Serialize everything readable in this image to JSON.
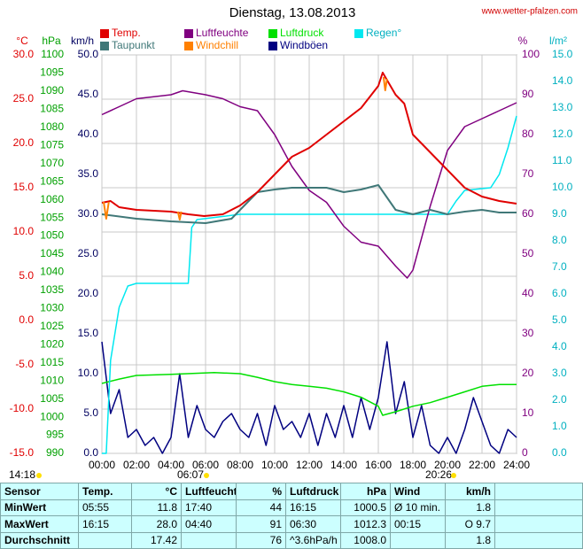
{
  "chart_data": {
    "type": "line",
    "title": "Dienstag, 13.08.2013",
    "source": "www.wetter-pfalzen.com",
    "xlim": [
      0,
      24
    ],
    "xticks": [
      {
        "value": 0,
        "label": "00:00"
      },
      {
        "value": 2,
        "label": "02:00"
      },
      {
        "value": 4,
        "label": "04:00"
      },
      {
        "value": 6,
        "label": "06:00"
      },
      {
        "value": 8,
        "label": "08:00"
      },
      {
        "value": 10,
        "label": "10:00"
      },
      {
        "value": 12,
        "label": "12:00"
      },
      {
        "value": 14,
        "label": "14:00"
      },
      {
        "value": 16,
        "label": "16:00"
      },
      {
        "value": 18,
        "label": "18:00"
      },
      {
        "value": 20,
        "label": "20:00"
      },
      {
        "value": 22,
        "label": "22:00"
      },
      {
        "value": 24,
        "label": "24:00"
      }
    ],
    "ylabel": "°C",
    "ylim": [
      -15,
      30
    ],
    "yticks": [
      {
        "value": 30,
        "label": "30.0"
      },
      {
        "value": 25,
        "label": "25.0"
      },
      {
        "value": 20,
        "label": "20.0"
      },
      {
        "value": 15,
        "label": "15.0"
      },
      {
        "value": 10,
        "label": "10.0"
      },
      {
        "value": 5,
        "label": "5.0"
      },
      {
        "value": 0,
        "label": "0.0"
      },
      {
        "value": -5,
        "label": "-5.0"
      },
      {
        "value": -10,
        "label": "-10.0"
      },
      {
        "value": -15,
        "label": "-15.0"
      }
    ],
    "y2label": "hPa",
    "y2lim": [
      990,
      1100
    ],
    "y2ticks": [
      1100,
      1095,
      1090,
      1085,
      1080,
      1075,
      1070,
      1065,
      1060,
      1055,
      1050,
      1045,
      1040,
      1035,
      1030,
      1025,
      1020,
      1015,
      1010,
      1005,
      1000,
      995,
      990
    ],
    "y3label": "km/h",
    "y3lim": [
      0,
      50
    ],
    "y3ticks": [
      {
        "value": 50,
        "label": "50.0"
      },
      {
        "value": 45,
        "label": "45.0"
      },
      {
        "value": 40,
        "label": "40.0"
      },
      {
        "value": 35,
        "label": "35.0"
      },
      {
        "value": 30,
        "label": "30.0"
      },
      {
        "value": 25,
        "label": "25.0"
      },
      {
        "value": 20,
        "label": "20.0"
      },
      {
        "value": 15,
        "label": "15.0"
      },
      {
        "value": 10,
        "label": "10.0"
      },
      {
        "value": 5,
        "label": "5.0"
      },
      {
        "value": 0,
        "label": "0.0"
      }
    ],
    "y4label": "%",
    "y4lim": [
      0,
      100
    ],
    "y4ticks": [
      100,
      90,
      80,
      70,
      60,
      50,
      40,
      30,
      20,
      10,
      0
    ],
    "y5label": "l/m²",
    "y5lim": [
      0,
      15
    ],
    "y5ticks": [
      {
        "value": 15,
        "label": "15.0"
      },
      {
        "value": 14,
        "label": "14.0"
      },
      {
        "value": 13,
        "label": "13.0"
      },
      {
        "value": 12,
        "label": "12.0"
      },
      {
        "value": 11,
        "label": "11.0"
      },
      {
        "value": 10,
        "label": "10.0"
      },
      {
        "value": 9,
        "label": "9.0"
      },
      {
        "value": 8,
        "label": "8.0"
      },
      {
        "value": 7,
        "label": "7.0"
      },
      {
        "value": 6,
        "label": "6.0"
      },
      {
        "value": 5,
        "label": "5.0"
      },
      {
        "value": 4,
        "label": "4.0"
      },
      {
        "value": 3,
        "label": "3.0"
      },
      {
        "value": 2,
        "label": "2.0"
      },
      {
        "value": 1,
        "label": "1.0"
      },
      {
        "value": 0,
        "label": "0.0"
      }
    ],
    "grid": true,
    "series": [
      {
        "name": "Temp.",
        "color": "#e00000",
        "axis": "y",
        "x": [
          0,
          0.5,
          1,
          2,
          4,
          5,
          5.92,
          7,
          8,
          9,
          10,
          11,
          12,
          13,
          14,
          15,
          16,
          16.25,
          17,
          17.5,
          18,
          19,
          20,
          21,
          22,
          23,
          24
        ],
        "values": [
          13.3,
          13.5,
          12.8,
          12.5,
          12.3,
          12.0,
          11.8,
          12.0,
          13.0,
          14.5,
          16.5,
          18.5,
          19.5,
          21.0,
          22.5,
          24.0,
          26.5,
          28.0,
          25.5,
          24.5,
          21.0,
          19.0,
          17.0,
          15.0,
          14.0,
          13.5,
          13.2
        ]
      },
      {
        "name": "Taupunkt",
        "color": "#407878",
        "axis": "y",
        "x": [
          0,
          2,
          4,
          6,
          7.5,
          8,
          9,
          10,
          11,
          12,
          13,
          14,
          15,
          16,
          17,
          18,
          19,
          20,
          21,
          22,
          23,
          24
        ],
        "values": [
          12.0,
          11.5,
          11.2,
          11.0,
          11.5,
          12.5,
          14.5,
          14.8,
          15.0,
          15.0,
          15.0,
          14.5,
          14.8,
          15.3,
          12.5,
          12.0,
          12.5,
          12.0,
          12.3,
          12.5,
          12.2,
          12.2
        ]
      },
      {
        "name": "Luftfeuchte",
        "color": "#800080",
        "axis": "y4",
        "x": [
          0,
          1,
          2,
          4,
          4.67,
          6,
          7,
          8,
          9,
          10,
          11,
          12,
          13,
          14,
          15,
          16,
          17,
          17.67,
          18,
          19,
          20,
          21,
          22,
          23,
          24
        ],
        "values": [
          85,
          87,
          89,
          90,
          91,
          90,
          89,
          87,
          86,
          80,
          72,
          66,
          63,
          57,
          53,
          52,
          47,
          44,
          46,
          62,
          76,
          82,
          84,
          86,
          88
        ]
      },
      {
        "name": "Windchill",
        "color": "#ff8000",
        "axis": "y",
        "x": [
          0.1,
          0.25,
          0.4,
          4.4,
          4.4,
          4.5,
          4.6,
          16.3,
          16.3,
          16.4,
          16.5
        ],
        "values": [
          13.4,
          11.5,
          13.4,
          null,
          12.3,
          11.4,
          12.3,
          null,
          27.5,
          26.0,
          27.3
        ]
      },
      {
        "name": "Luftdruck",
        "color": "#00e000",
        "axis": "y2",
        "x": [
          0,
          1,
          2,
          4,
          6.5,
          8,
          9,
          10,
          11,
          12,
          13,
          14,
          15,
          16,
          16.25,
          17,
          18,
          19,
          20,
          21,
          22,
          23,
          24
        ],
        "values": [
          1009.3,
          1010.5,
          1011.5,
          1011.8,
          1012.3,
          1012.0,
          1011.0,
          1009.8,
          1009.0,
          1008.5,
          1008.0,
          1007.0,
          1005.5,
          1003.0,
          1000.5,
          1001.5,
          1003.0,
          1004.0,
          1005.5,
          1007.0,
          1008.5,
          1009.0,
          1009.0
        ]
      },
      {
        "name": "Windböen",
        "color": "#000080",
        "axis": "y3",
        "x": [
          0,
          0.5,
          1,
          1.5,
          2,
          2.5,
          3,
          3.5,
          4,
          4.5,
          5,
          5.5,
          6,
          6.5,
          7,
          7.5,
          8,
          8.5,
          9,
          9.5,
          10,
          10.5,
          11,
          11.5,
          12,
          12.5,
          13,
          13.5,
          14,
          14.5,
          15,
          15.5,
          16,
          16.5,
          17,
          17.5,
          18,
          18.5,
          19,
          19.5,
          20,
          20.5,
          21,
          21.5,
          22,
          22.5,
          23,
          23.5,
          24
        ],
        "values": [
          14,
          5,
          8,
          2,
          3,
          1,
          2,
          0,
          2,
          10,
          2,
          6,
          3,
          2,
          4,
          5,
          3,
          2,
          5,
          1,
          6,
          3,
          4,
          2,
          5,
          1,
          5,
          2,
          6,
          2,
          7,
          3,
          7,
          14,
          5,
          9,
          2,
          6,
          1,
          0,
          2,
          0,
          3,
          7,
          4,
          1,
          0,
          3,
          2
        ]
      },
      {
        "name": "Regen°",
        "color": "#00e8f0",
        "axis": "y5",
        "x": [
          0,
          0.25,
          0.5,
          1,
          1.5,
          2,
          5,
          5.2,
          5.5,
          8,
          20,
          20.5,
          21,
          22.5,
          23,
          23.5,
          24
        ],
        "values": [
          0,
          0,
          3.5,
          5.5,
          6.3,
          6.4,
          6.4,
          8.5,
          8.8,
          9.0,
          9.0,
          9.5,
          9.9,
          10.0,
          10.5,
          11.5,
          12.7
        ]
      }
    ],
    "annotations": [
      "14:18",
      "06:07",
      "20:26"
    ],
    "table": {
      "header": {
        "label": "Sensor",
        "temp": "Temp.",
        "temp_unit": "°C",
        "hum": "Luftfeuchte",
        "hum_unit": "%",
        "press": "Luftdruck",
        "press_unit": "hPa",
        "wind": "Wind",
        "wind_unit": "km/h"
      },
      "rows": [
        {
          "label": "MinWert",
          "temp_time": "05:55",
          "temp": "11.8",
          "hum_time": "17:40",
          "hum": "44",
          "press_time": "16:15",
          "press": "1000.5",
          "wind_time": "Ø 10 min.",
          "wind": "1.8"
        },
        {
          "label": "MaxWert",
          "temp_time": "16:15",
          "temp": "28.0",
          "hum_time": "04:40",
          "hum": "91",
          "press_time": "06:30",
          "press": "1012.3",
          "wind_time": "00:15",
          "wind": "O 9.7"
        },
        {
          "label": "Durchschnitt",
          "temp": "17.42",
          "hum": "76",
          "press_time": "^3.6hPa/h",
          "press": "1008.0",
          "wind": "1.8"
        }
      ]
    }
  }
}
